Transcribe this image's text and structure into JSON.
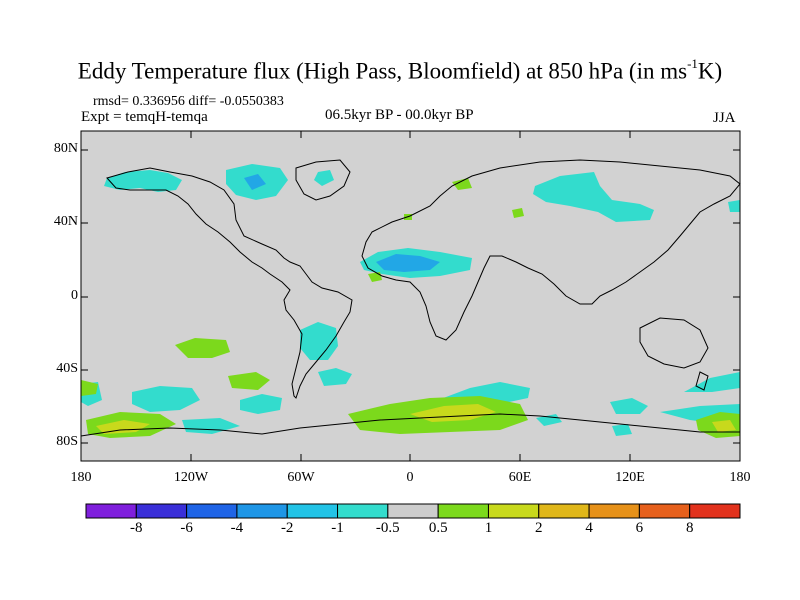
{
  "title": {
    "main": "Eddy Temperature flux (High Pass, Bloomfield) at 850 hPa (in ms",
    "sup": "-1",
    "tail": "K)"
  },
  "stats": {
    "line1": "rmsd= 0.336956 diff= -0.0550383",
    "line2": "Expt = temqH-temqa"
  },
  "period": "06.5kyr BP - 00.0kyr BP",
  "season": "JJA",
  "axes": {
    "lat_labels": [
      "80N",
      "40N",
      "0",
      "40S",
      "80S"
    ],
    "lon_labels": [
      "180",
      "120W",
      "60W",
      "0",
      "60E",
      "120E",
      "180"
    ]
  },
  "colorbar": {
    "labels": [
      "-8",
      "-6",
      "-4",
      "-2",
      "-1",
      "-0.5",
      "0.5",
      "1",
      "2",
      "4",
      "6",
      "8"
    ],
    "colors": [
      "#7f1fdc",
      "#3a2fd8",
      "#1f64e6",
      "#1f96e6",
      "#22c3e6",
      "#33dccd",
      "#cdcdcd",
      "#7cd91c",
      "#c8d91c",
      "#e0b71a",
      "#e69119",
      "#e6601c",
      "#e2321d"
    ]
  },
  "map_background": "#d2d2d2"
}
